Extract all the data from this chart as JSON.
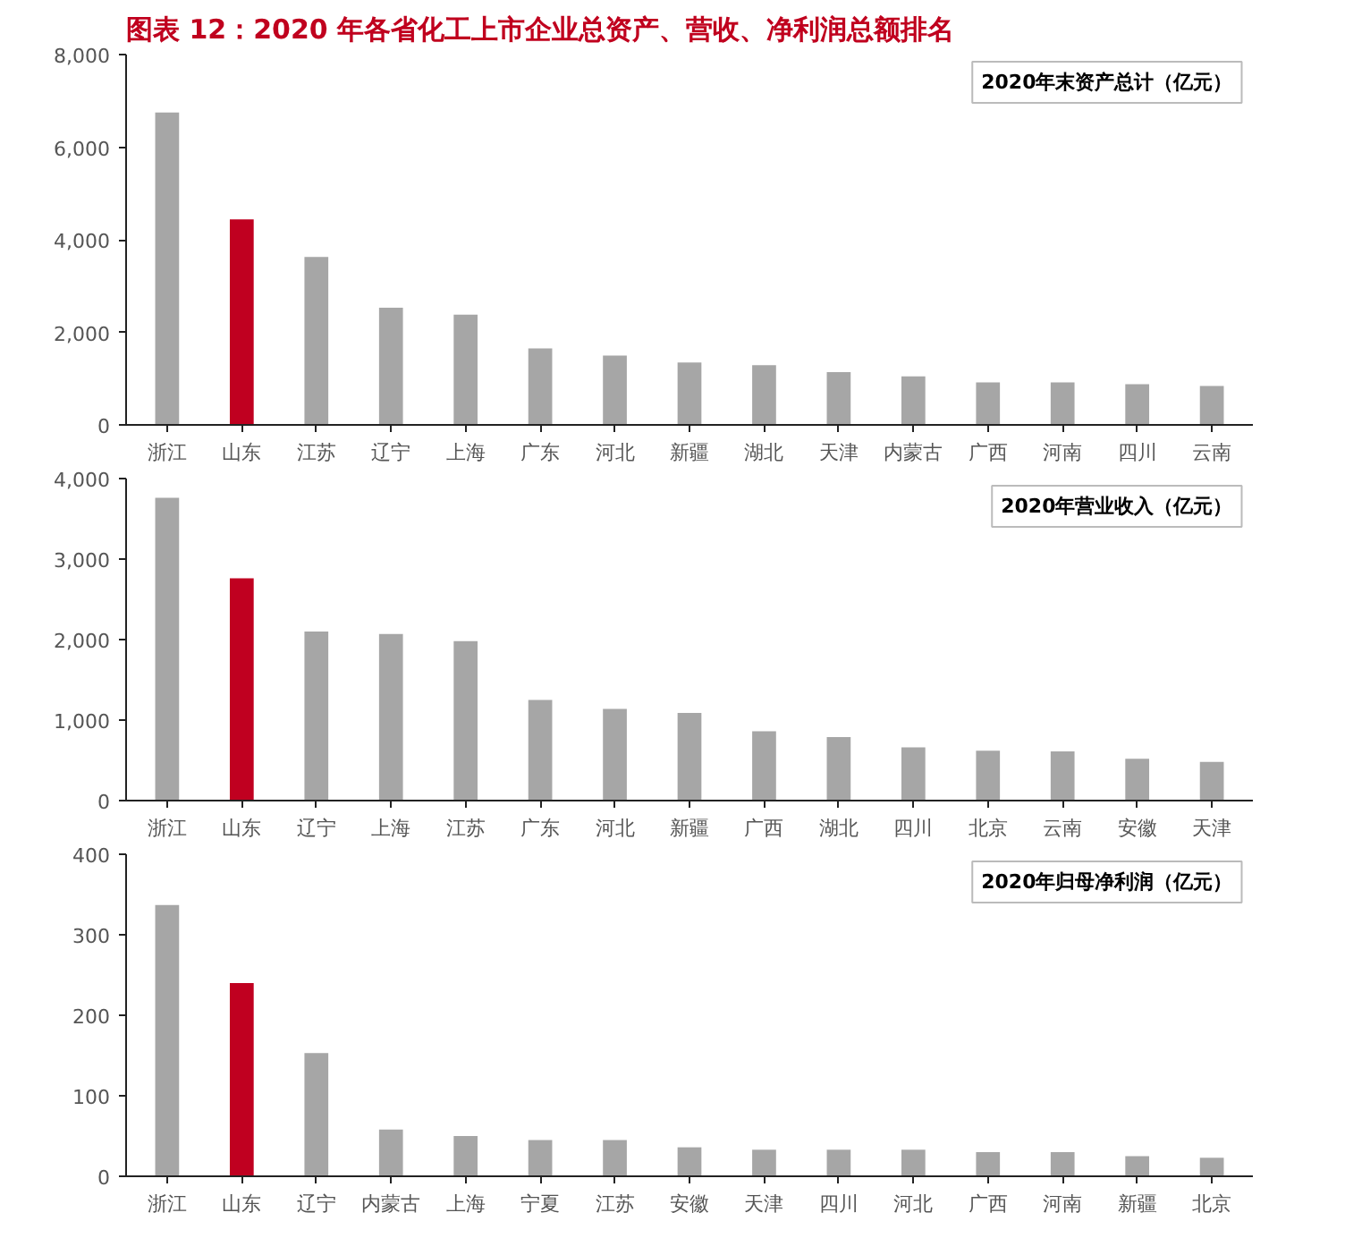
{
  "chart_data": [
    {
      "type": "bar",
      "title": "图表 12：2020 年各省化工上市企业总资产、营收、净利润总额排名",
      "subtitle": "2020年末资产总计（亿元）",
      "categories": [
        "浙江",
        "山东",
        "江苏",
        "辽宁",
        "上海",
        "广东",
        "河北",
        "新疆",
        "湖北",
        "天津",
        "内蒙古",
        "广西",
        "河南",
        "四川",
        "云南"
      ],
      "values": [
        6750,
        4440,
        3630,
        2530,
        2380,
        1650,
        1500,
        1350,
        1290,
        1140,
        1050,
        920,
        920,
        880,
        840
      ],
      "colors": [
        "#a6a6a6",
        "#c00020",
        "#a6a6a6",
        "#a6a6a6",
        "#a6a6a6",
        "#a6a6a6",
        "#a6a6a6",
        "#a6a6a6",
        "#a6a6a6",
        "#a6a6a6",
        "#a6a6a6",
        "#a6a6a6",
        "#a6a6a6",
        "#a6a6a6",
        "#a6a6a6"
      ],
      "ylim": [
        0,
        8000
      ],
      "yticks": [
        0,
        {
          "value": 2000,
          "label": "2,000"
        },
        {
          "value": 4000,
          "label": "4,000"
        },
        {
          "value": 6000,
          "label": "6,000"
        },
        {
          "value": 8000,
          "label": "8,000"
        }
      ]
    },
    {
      "type": "bar",
      "subtitle": "2020年营业收入（亿元）",
      "categories": [
        "浙江",
        "山东",
        "辽宁",
        "上海",
        "江苏",
        "广东",
        "河北",
        "新疆",
        "广西",
        "湖北",
        "四川",
        "北京",
        "云南",
        "安徽",
        "天津"
      ],
      "values": [
        3760,
        2760,
        2100,
        2070,
        1980,
        1250,
        1140,
        1090,
        860,
        790,
        660,
        620,
        610,
        520,
        480
      ],
      "colors": [
        "#a6a6a6",
        "#c00020",
        "#a6a6a6",
        "#a6a6a6",
        "#a6a6a6",
        "#a6a6a6",
        "#a6a6a6",
        "#a6a6a6",
        "#a6a6a6",
        "#a6a6a6",
        "#a6a6a6",
        "#a6a6a6",
        "#a6a6a6",
        "#a6a6a6",
        "#a6a6a6"
      ],
      "ylim": [
        0,
        4000
      ],
      "yticks": [
        0,
        {
          "value": 1000,
          "label": "1,000"
        },
        {
          "value": 2000,
          "label": "2,000"
        },
        {
          "value": 3000,
          "label": "3,000"
        },
        {
          "value": 4000,
          "label": "4,000"
        }
      ]
    },
    {
      "type": "bar",
      "subtitle": "2020年归母净利润（亿元）",
      "categories": [
        "浙江",
        "山东",
        "辽宁",
        "内蒙古",
        "上海",
        "宁夏",
        "江苏",
        "安徽",
        "天津",
        "四川",
        "河北",
        "广西",
        "河南",
        "新疆",
        "北京"
      ],
      "values": [
        337,
        240,
        153,
        58,
        50,
        45,
        45,
        36,
        33,
        33,
        33,
        30,
        30,
        25,
        23
      ],
      "colors": [
        "#a6a6a6",
        "#c00020",
        "#a6a6a6",
        "#a6a6a6",
        "#a6a6a6",
        "#a6a6a6",
        "#a6a6a6",
        "#a6a6a6",
        "#a6a6a6",
        "#a6a6a6",
        "#a6a6a6",
        "#a6a6a6",
        "#a6a6a6",
        "#a6a6a6",
        "#a6a6a6"
      ],
      "ylim": [
        0,
        400
      ],
      "yticks": [
        0,
        100,
        200,
        300,
        400
      ]
    }
  ]
}
